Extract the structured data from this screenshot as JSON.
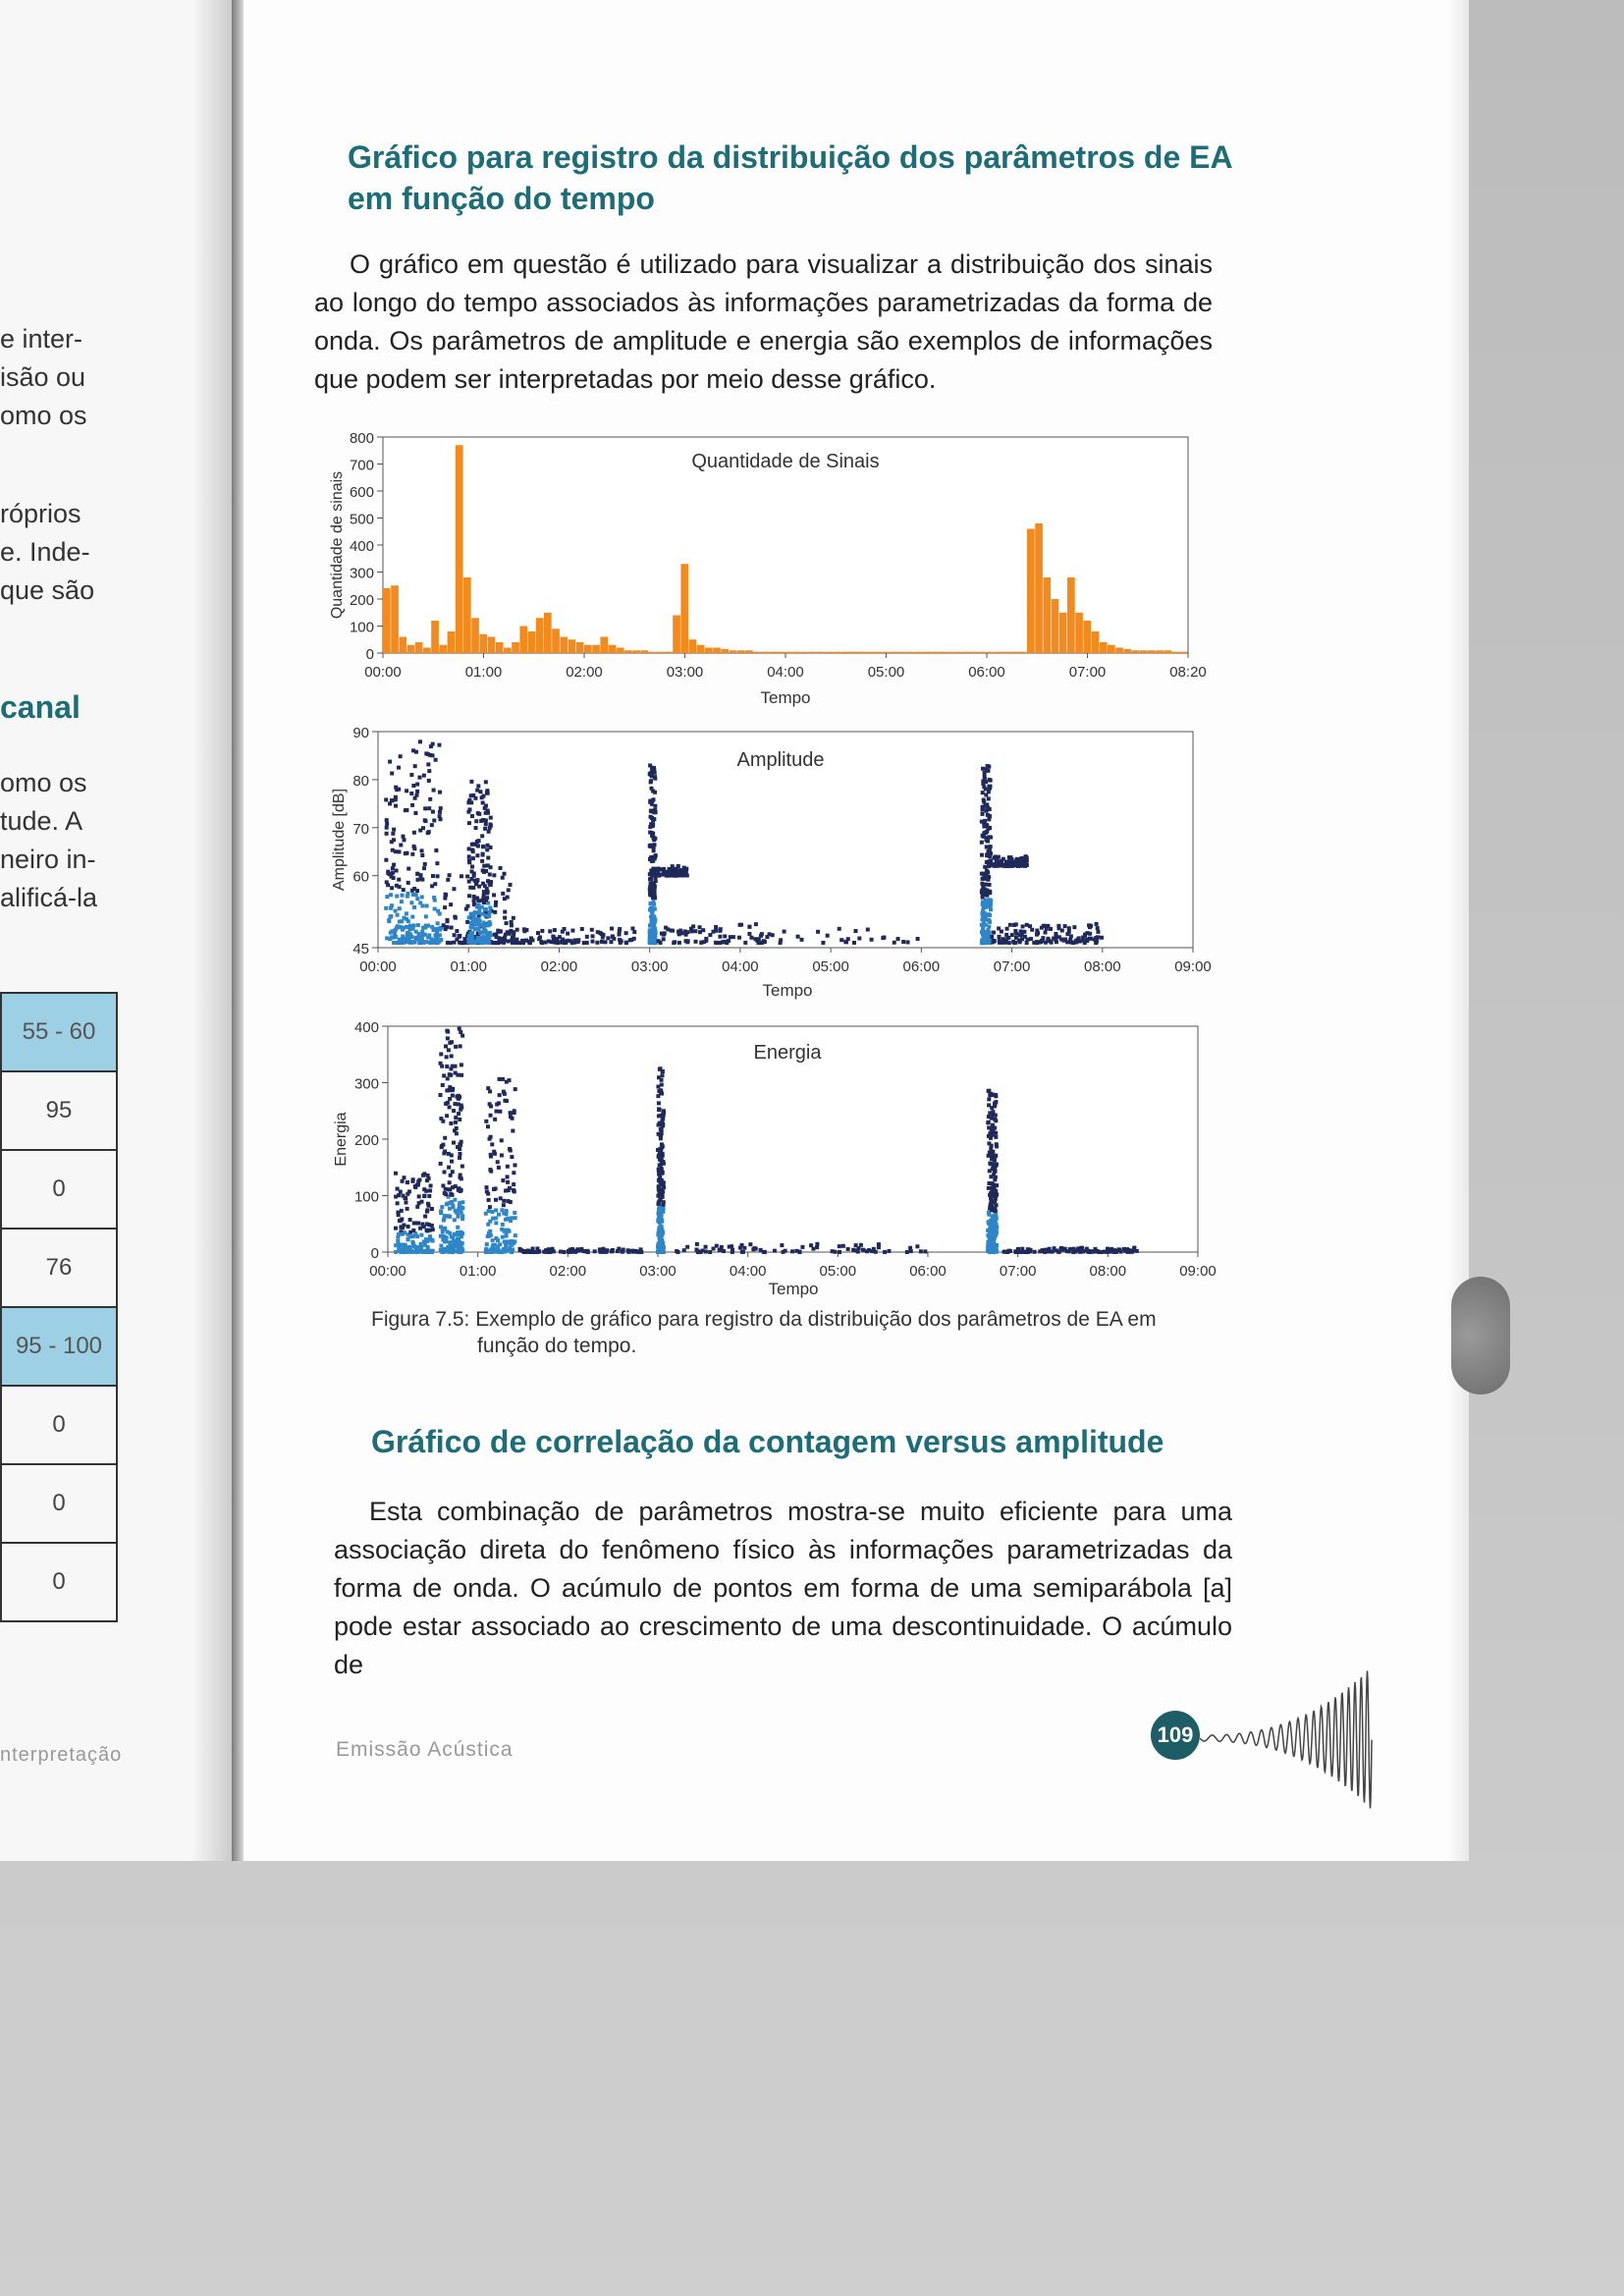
{
  "left_page": {
    "fragments": [
      "e inter-",
      "isão ou",
      "omo os",
      "róprios",
      "e. Inde-",
      "que são"
    ],
    "heading_fragment": "canal",
    "fragments2": [
      "omo os",
      "tude. A",
      "neiro in-",
      "alificá-la"
    ],
    "table_cells": [
      "55 - 60",
      "95",
      "0",
      "76",
      "95 - 100",
      "0",
      "0",
      "0"
    ],
    "footer_fragment": "nterpretação"
  },
  "section1": {
    "title_line1": "Gráfico para registro da distribuição dos parâmetros de EA",
    "title_line2": "em função do tempo",
    "paragraph": "O gráfico em questão é utilizado para visualizar a distribuição dos sinais ao longo do tempo associados às informações parametrizadas da forma de onda. Os parâmetros de amplitude e energia são exemplos de informações que podem ser interpretadas por meio desse gráfico."
  },
  "figure_caption": {
    "line1": "Figura 7.5: Exemplo de gráfico para registro da distribuição dos parâmetros de EA em",
    "line2": "função do tempo."
  },
  "section2": {
    "title": "Gráfico de correlação da contagem versus amplitude",
    "paragraph": "Esta combinação de parâmetros mostra-se muito eficiente para uma associação direta do fenômeno físico às informações parametrizadas da forma de onda. O acúmulo de pontos em forma de uma semiparábola [a] pode estar associado ao crescimento de uma descontinuidade. O acúmulo de"
  },
  "footer": {
    "title": "Emissão Acústica",
    "page_number": "109"
  },
  "colors": {
    "accent": "#1d6d78",
    "bar": "#f28a1e",
    "points": "#1f2a5a",
    "points_dense": "#2e86c8"
  },
  "chart_data": [
    {
      "type": "bar",
      "title": "Quantidade de Sinais",
      "xlabel": "Tempo",
      "ylabel": "Quantidade de sinais",
      "ylim": [
        0,
        800
      ],
      "yticks": [
        "0",
        "100",
        "200",
        "300",
        "400",
        "500",
        "600",
        "700",
        "800"
      ],
      "xticks": [
        "00:00",
        "01:00",
        "02:00",
        "03:00",
        "04:00",
        "05:00",
        "06:00",
        "07:00",
        "08:20"
      ],
      "xlim_minutes": [
        0,
        500
      ],
      "bin_minutes": 5,
      "values": [
        240,
        250,
        60,
        30,
        40,
        20,
        120,
        30,
        80,
        770,
        280,
        130,
        70,
        60,
        40,
        20,
        40,
        100,
        80,
        130,
        150,
        90,
        60,
        50,
        40,
        30,
        30,
        60,
        30,
        20,
        10,
        10,
        10,
        5,
        5,
        5,
        140,
        330,
        50,
        30,
        20,
        20,
        15,
        10,
        10,
        10,
        5,
        5,
        5,
        5,
        5,
        5,
        5,
        5,
        5,
        5,
        5,
        5,
        5,
        5,
        5,
        5,
        5,
        5,
        5,
        5,
        5,
        5,
        5,
        5,
        5,
        5,
        5,
        5,
        5,
        5,
        5,
        5,
        5,
        5,
        460,
        480,
        280,
        200,
        150,
        280,
        150,
        120,
        80,
        40,
        30,
        20,
        15,
        10,
        10,
        10,
        10,
        10,
        5,
        5
      ]
    },
    {
      "type": "scatter",
      "title": "Amplitude",
      "xlabel": "Tempo",
      "ylabel": "Amplitude [dB]",
      "ylim": [
        45,
        90
      ],
      "yticks": [
        "45",
        "60",
        "70",
        "80",
        "90"
      ],
      "xticks": [
        "00:00",
        "01:00",
        "02:00",
        "03:00",
        "04:00",
        "05:00",
        "06:00",
        "07:00",
        "08:00",
        "09:00"
      ],
      "xlim_minutes": [
        0,
        540
      ],
      "clusters": [
        {
          "t_min": 5,
          "t_max": 42,
          "a_min": 46,
          "a_max": 88,
          "density": 1.0
        },
        {
          "t_min": 43,
          "t_max": 90,
          "a_min": 46,
          "a_max": 62,
          "density": 0.5
        },
        {
          "t_min": 60,
          "t_max": 75,
          "a_min": 46,
          "a_max": 80,
          "density": 0.8
        },
        {
          "t_min": 75,
          "t_max": 170,
          "a_min": 46,
          "a_max": 49,
          "density": 0.4
        },
        {
          "t_min": 180,
          "t_max": 184,
          "a_min": 46,
          "a_max": 83,
          "density": 0.8
        },
        {
          "t_min": 184,
          "t_max": 205,
          "a_min": 60,
          "a_max": 62,
          "density": 0.3
        },
        {
          "t_min": 185,
          "t_max": 260,
          "a_min": 46,
          "a_max": 50,
          "density": 0.3
        },
        {
          "t_min": 260,
          "t_max": 360,
          "a_min": 46,
          "a_max": 49,
          "density": 0.1
        },
        {
          "t_min": 400,
          "t_max": 406,
          "a_min": 46,
          "a_max": 83,
          "density": 0.9
        },
        {
          "t_min": 406,
          "t_max": 430,
          "a_min": 62,
          "a_max": 64,
          "density": 0.4
        },
        {
          "t_min": 406,
          "t_max": 480,
          "a_min": 46,
          "a_max": 50,
          "density": 0.5
        }
      ]
    },
    {
      "type": "scatter",
      "title": "Energia",
      "xlabel": "Tempo",
      "ylabel": "Energia",
      "ylim": [
        0,
        400
      ],
      "yticks": [
        "0",
        "100",
        "200",
        "300",
        "400"
      ],
      "xticks": [
        "00:00",
        "01:00",
        "02:00",
        "03:00",
        "04:00",
        "05:00",
        "06:00",
        "07:00",
        "08:00",
        "09:00"
      ],
      "xlim_minutes": [
        0,
        540
      ],
      "clusters": [
        {
          "t_min": 5,
          "t_max": 30,
          "e_min": 0,
          "e_max": 140,
          "density": 0.6
        },
        {
          "t_min": 35,
          "t_max": 50,
          "e_min": 0,
          "e_max": 400,
          "density": 0.9
        },
        {
          "t_min": 65,
          "t_max": 85,
          "e_min": 0,
          "e_max": 310,
          "density": 0.6
        },
        {
          "t_min": 85,
          "t_max": 170,
          "e_min": 0,
          "e_max": 8,
          "density": 0.3
        },
        {
          "t_min": 180,
          "t_max": 184,
          "e_min": 0,
          "e_max": 330,
          "density": 0.8
        },
        {
          "t_min": 184,
          "t_max": 360,
          "e_min": 0,
          "e_max": 15,
          "density": 0.3
        },
        {
          "t_min": 400,
          "t_max": 406,
          "e_min": 0,
          "e_max": 290,
          "density": 0.9
        },
        {
          "t_min": 406,
          "t_max": 500,
          "e_min": 0,
          "e_max": 8,
          "density": 0.4
        }
      ]
    }
  ]
}
